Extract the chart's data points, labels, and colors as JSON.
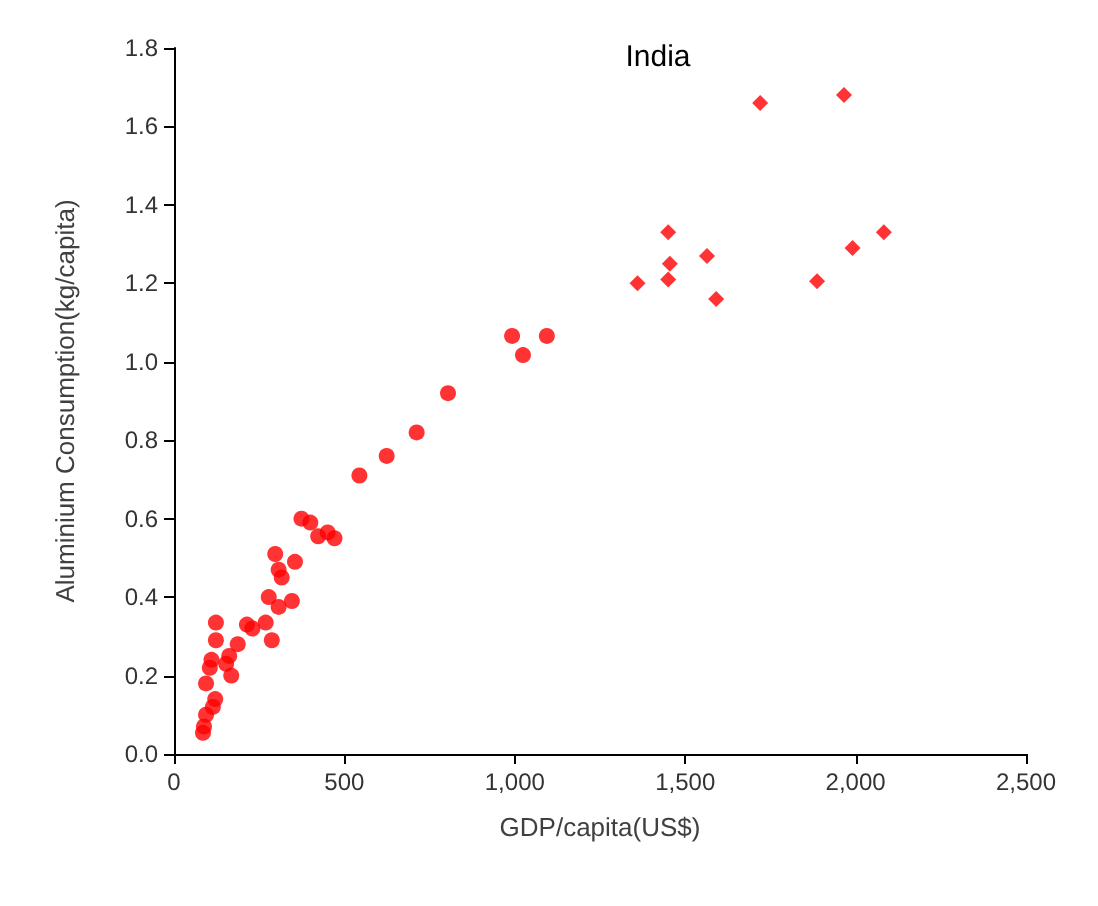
{
  "chart_data": {
    "type": "scatter",
    "title": "India",
    "xlabel": "GDP/capita(US$)",
    "ylabel": "Aluminium Consumption(kg/capita)",
    "xlim": [
      0,
      2500
    ],
    "xticks": [
      0,
      {
        "value": 500,
        "label": "500"
      },
      {
        "value": 1000,
        "label": "1,000"
      },
      {
        "value": 1500,
        "label": "1,500"
      },
      {
        "value": 2000,
        "label": "2,000"
      },
      {
        "value": 2500,
        "label": "2,500"
      }
    ],
    "ylim": [
      0,
      1.8
    ],
    "yticks": [
      {
        "value": 0,
        "label": "0.0"
      },
      0.2,
      0.4,
      0.6,
      0.8,
      {
        "value": 1,
        "label": "1.0"
      },
      1.2,
      1.4,
      1.6,
      1.8
    ],
    "grid": false,
    "series": [
      {
        "color": "#ff0000",
        "marker": "circle",
        "x": [
          85,
          88,
          94,
          114,
          121,
          94,
          105,
          110,
          123,
          123,
          153,
          168,
          162,
          187,
          214,
          230,
          269,
          278,
          287,
          307,
          346,
          297,
          307,
          316,
          355,
          374,
          400,
          423,
          451,
          471,
          544,
          624,
          712,
          804,
          992,
          1024,
          1094
        ],
        "values": [
          0.054,
          0.07,
          0.1,
          0.12,
          0.14,
          0.18,
          0.22,
          0.24,
          0.29,
          0.335,
          0.23,
          0.2,
          0.25,
          0.28,
          0.33,
          0.32,
          0.335,
          0.4,
          0.29,
          0.375,
          0.39,
          0.51,
          0.47,
          0.45,
          0.49,
          0.6,
          0.59,
          0.555,
          0.565,
          0.55,
          0.71,
          0.76,
          0.82,
          0.92,
          1.066,
          1.017,
          1.066
        ]
      },
      {
        "color": "#ff0000",
        "marker": "diamond",
        "x": [
          1360,
          1450,
          1455,
          1450,
          1564,
          1591,
          1720,
          1887,
          1966,
          1991,
          2083
        ],
        "values": [
          1.2,
          1.33,
          1.25,
          1.21,
          1.27,
          1.16,
          1.66,
          1.205,
          1.68,
          1.29,
          1.33
        ]
      }
    ]
  }
}
